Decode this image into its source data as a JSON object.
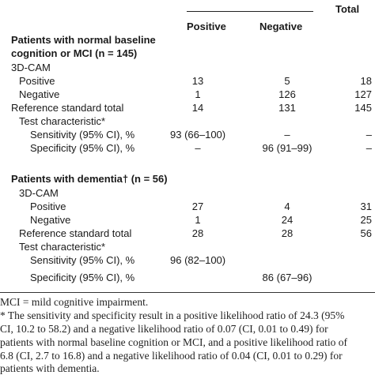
{
  "header": {
    "total": "Total",
    "positive": "Positive",
    "negative": "Negative"
  },
  "section1": {
    "title_line1": "Patients with normal baseline",
    "title_line2": "cognition or MCI (n = 145)",
    "camLabel": "3D-CAM",
    "rows": [
      {
        "label": "Positive",
        "pos": "13",
        "neg": "5",
        "total": "18"
      },
      {
        "label": "Negative",
        "pos": "1",
        "neg": "126",
        "total": "127"
      },
      {
        "label": "Reference standard total",
        "pos": "14",
        "neg": "131",
        "total": "145"
      },
      {
        "label": "Test characteristic*",
        "pos": "",
        "neg": "",
        "total": ""
      },
      {
        "label": "Sensitivity (95% CI), %",
        "pos": "93 (66–100)",
        "neg": "–",
        "total": "–"
      },
      {
        "label": "Specificity (95% CI), %",
        "pos": "–",
        "neg": "96 (91–99)",
        "total": "–"
      }
    ]
  },
  "section2": {
    "title": "Patients with dementia† (n = 56)",
    "camLabel": "3D-CAM",
    "rows": [
      {
        "label": "Positive",
        "pos": "27",
        "neg": "4",
        "total": "31"
      },
      {
        "label": "Negative",
        "pos": "1",
        "neg": "24",
        "total": "25"
      },
      {
        "label": "Reference standard total",
        "pos": "28",
        "neg": "28",
        "total": "56"
      },
      {
        "label": "Test characteristic*",
        "pos": "",
        "neg": "",
        "total": ""
      },
      {
        "label": "Sensitivity (95% CI), %",
        "pos": "96 (82–100)",
        "neg": "",
        "total": ""
      },
      {
        "label": "Specificity (95% CI), %",
        "pos": "",
        "neg": "86 (67–96)",
        "total": ""
      }
    ]
  },
  "footnotes": {
    "line1": "MCI = mild cognitive impairment.",
    "line2": "* The sensitivity and specificity result in a positive likelihood ratio of 24.3 (95%",
    "line3": "CI, 10.2 to 58.2) and a negative likelihood ratio of 0.07 (CI, 0.01 to 0.49) for",
    "line4": "patients with normal baseline cognition or MCI, and a positive likelihood ratio of",
    "line5": "6.8 (CI, 2.7 to 16.8) and a negative likelihood ratio of 0.04 (CI, 0.01 to 0.29) for",
    "line6": "patients with dementia."
  }
}
